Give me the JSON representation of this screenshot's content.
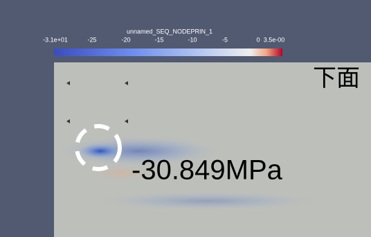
{
  "colorbar": {
    "title": "unnamed_SEQ_NODEPRIN_1",
    "ticks": [
      "-3.1e+01",
      "-25",
      "-20",
      "-15",
      "-10",
      "-5",
      "0",
      "3.5e-00"
    ]
  },
  "label": "下面",
  "annotation": "-30.849MPa"
}
